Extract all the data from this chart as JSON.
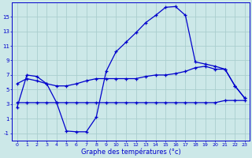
{
  "xlabel": "Graphe des températures (°c)",
  "background_color": "#cce8e8",
  "grid_color": "#aacece",
  "line_color": "#0000cc",
  "xlim": [
    -0.5,
    23.5
  ],
  "ylim": [
    -2.0,
    17.0
  ],
  "xticks": [
    0,
    1,
    2,
    3,
    4,
    5,
    6,
    7,
    8,
    9,
    10,
    11,
    12,
    13,
    14,
    15,
    16,
    17,
    18,
    19,
    20,
    21,
    22,
    23
  ],
  "yticks": [
    -1,
    1,
    3,
    5,
    7,
    9,
    11,
    13,
    15
  ],
  "line1_x": [
    0,
    1,
    2,
    3,
    4,
    5,
    6,
    7,
    8,
    9,
    10,
    11,
    12,
    13,
    14,
    15,
    16,
    17,
    18,
    19,
    20,
    21,
    22,
    23
  ],
  "line1_y": [
    2.5,
    7.0,
    6.8,
    5.8,
    3.2,
    -0.7,
    -0.8,
    -0.8,
    1.2,
    7.5,
    10.2,
    11.5,
    12.8,
    14.2,
    15.2,
    16.3,
    16.4,
    15.2,
    8.8,
    8.5,
    8.2,
    7.8,
    5.5,
    3.8
  ],
  "line2_x": [
    0,
    1,
    2,
    3,
    4,
    5,
    6,
    7,
    8,
    9,
    10,
    11,
    12,
    13,
    14,
    15,
    16,
    17,
    18,
    19,
    20,
    21,
    22,
    23
  ],
  "line2_y": [
    3.2,
    3.2,
    3.2,
    3.2,
    3.2,
    3.2,
    3.2,
    3.2,
    3.2,
    3.2,
    3.2,
    3.2,
    3.2,
    3.2,
    3.2,
    3.2,
    3.2,
    3.2,
    3.2,
    3.2,
    3.2,
    3.5,
    3.5,
    3.5
  ],
  "line3_x": [
    0,
    1,
    2,
    3,
    4,
    5,
    6,
    7,
    8,
    9,
    10,
    11,
    12,
    13,
    14,
    15,
    16,
    17,
    18,
    19,
    20,
    21,
    22,
    23
  ],
  "line3_y": [
    5.8,
    6.5,
    6.2,
    5.8,
    5.5,
    5.5,
    5.8,
    6.2,
    6.5,
    6.5,
    6.5,
    6.5,
    6.5,
    6.8,
    7.0,
    7.0,
    7.2,
    7.5,
    8.0,
    8.2,
    7.8,
    7.8,
    5.5,
    3.8
  ],
  "marker": "+",
  "markersize": 3,
  "linewidth": 0.9
}
